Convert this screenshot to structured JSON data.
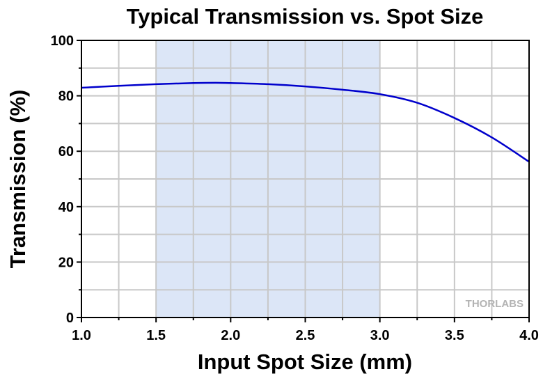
{
  "chart_data": {
    "type": "line",
    "title": "Typical Transmission vs. Spot Size",
    "xlabel": "Input Spot Size (mm)",
    "ylabel": "Transmission (%)",
    "xlim": [
      1.0,
      4.0
    ],
    "ylim": [
      0,
      100
    ],
    "xticks": [
      "1.0",
      "1.5",
      "2.0",
      "2.5",
      "3.0",
      "3.5",
      "4.0"
    ],
    "yticks": [
      "0",
      "20",
      "40",
      "60",
      "80",
      "100"
    ],
    "grid": true,
    "highlight_range": [
      1.5,
      3.0
    ],
    "logo_text": "THORLABS",
    "colors": {
      "line": "#0000cc",
      "highlight": "#dce6f7",
      "grid": "#c8c8c8"
    },
    "series": [
      {
        "x": [
          1.0,
          1.25,
          1.5,
          1.75,
          1.9,
          2.0,
          2.25,
          2.5,
          2.75,
          3.0,
          3.25,
          3.5,
          3.75,
          4.0
        ],
        "values": [
          82.9,
          83.6,
          84.2,
          84.6,
          84.7,
          84.6,
          84.2,
          83.4,
          82.2,
          80.6,
          77.5,
          72.0,
          65.0,
          56.2
        ]
      }
    ]
  }
}
